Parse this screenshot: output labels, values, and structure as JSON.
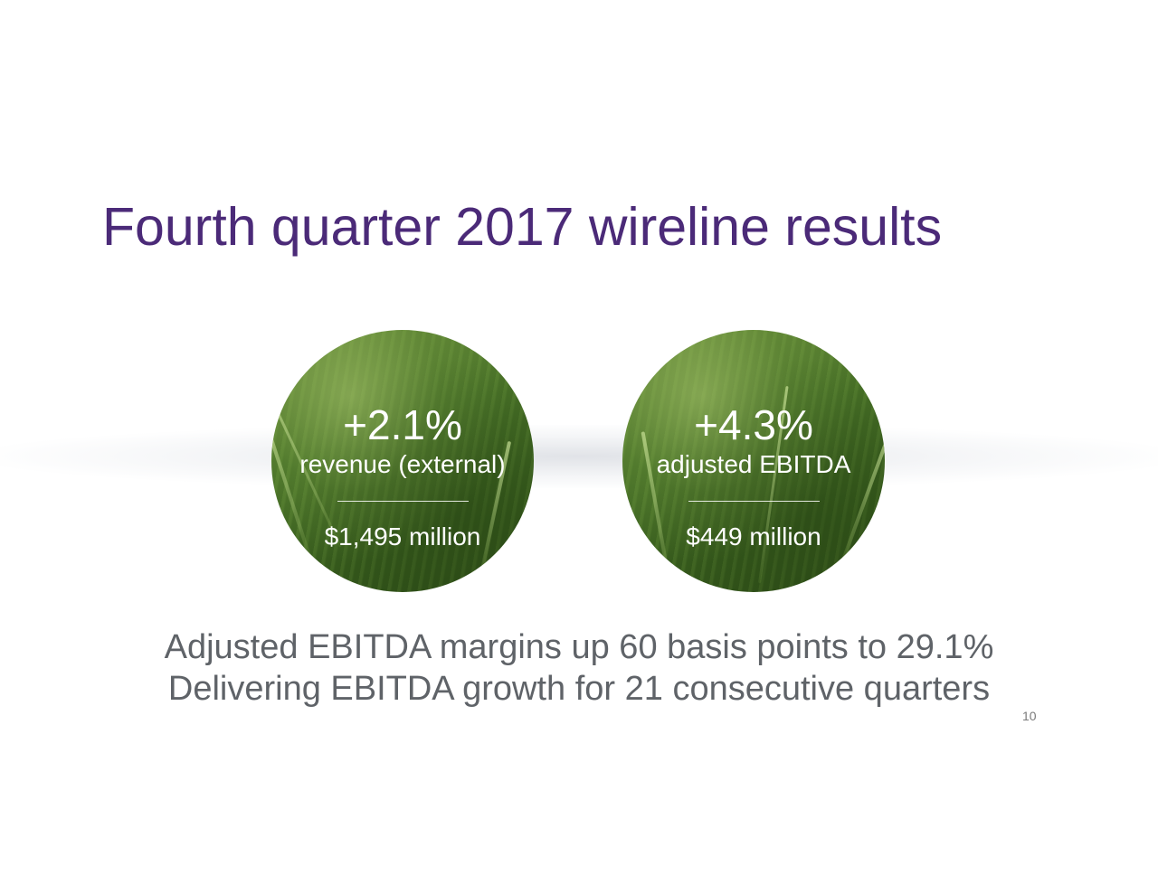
{
  "title": "Fourth quarter 2017 wireline results",
  "metrics": [
    {
      "change": "+2.1%",
      "label": "revenue (external)",
      "amount": "$1,495 million"
    },
    {
      "change": "+4.3%",
      "label": "adjusted EBITDA",
      "amount": "$449 million"
    }
  ],
  "bullets": [
    "Adjusted EBITDA margins up 60 basis points to 29.1%",
    "Delivering EBITDA growth for 21 consecutive quarters"
  ],
  "page_number": "10",
  "colors": {
    "title": "#4b2a78",
    "body_text": "#5f6368",
    "circle_text": "#ffffff",
    "circle_fill": "#4f7a2c"
  }
}
